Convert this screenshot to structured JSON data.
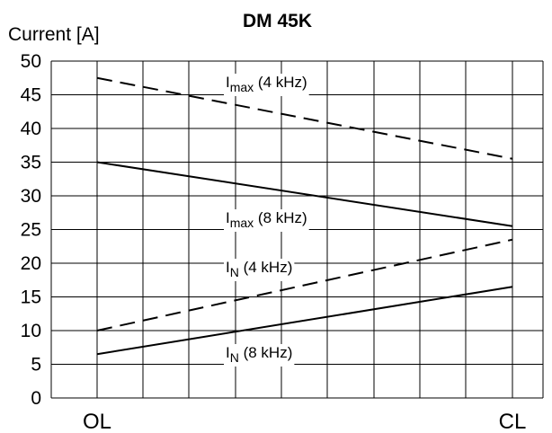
{
  "chart_data": {
    "type": "line",
    "title": "DM 45K",
    "ylabel": "Current [A]",
    "xlabel": "",
    "categories": [
      "OL",
      "CL"
    ],
    "ylim": [
      0,
      50
    ],
    "yticks": [
      0,
      5,
      10,
      15,
      20,
      25,
      30,
      35,
      40,
      45,
      50
    ],
    "grid": true,
    "series": [
      {
        "name_main": "I",
        "name_sub": "max",
        "name_rest": " (4 kHz)",
        "values": [
          47.5,
          35.5
        ],
        "style": "dashed"
      },
      {
        "name_main": "I",
        "name_sub": "max",
        "name_rest": " (8 kHz)",
        "values": [
          35,
          25.5
        ],
        "style": "solid"
      },
      {
        "name_main": "I",
        "name_sub": "N",
        "name_rest": " (4 kHz)",
        "values": [
          10,
          23.5
        ],
        "style": "dashed"
      },
      {
        "name_main": "I",
        "name_sub": "N",
        "name_rest": " (8 kHz)",
        "values": [
          6.5,
          16.5
        ],
        "style": "solid"
      }
    ]
  }
}
